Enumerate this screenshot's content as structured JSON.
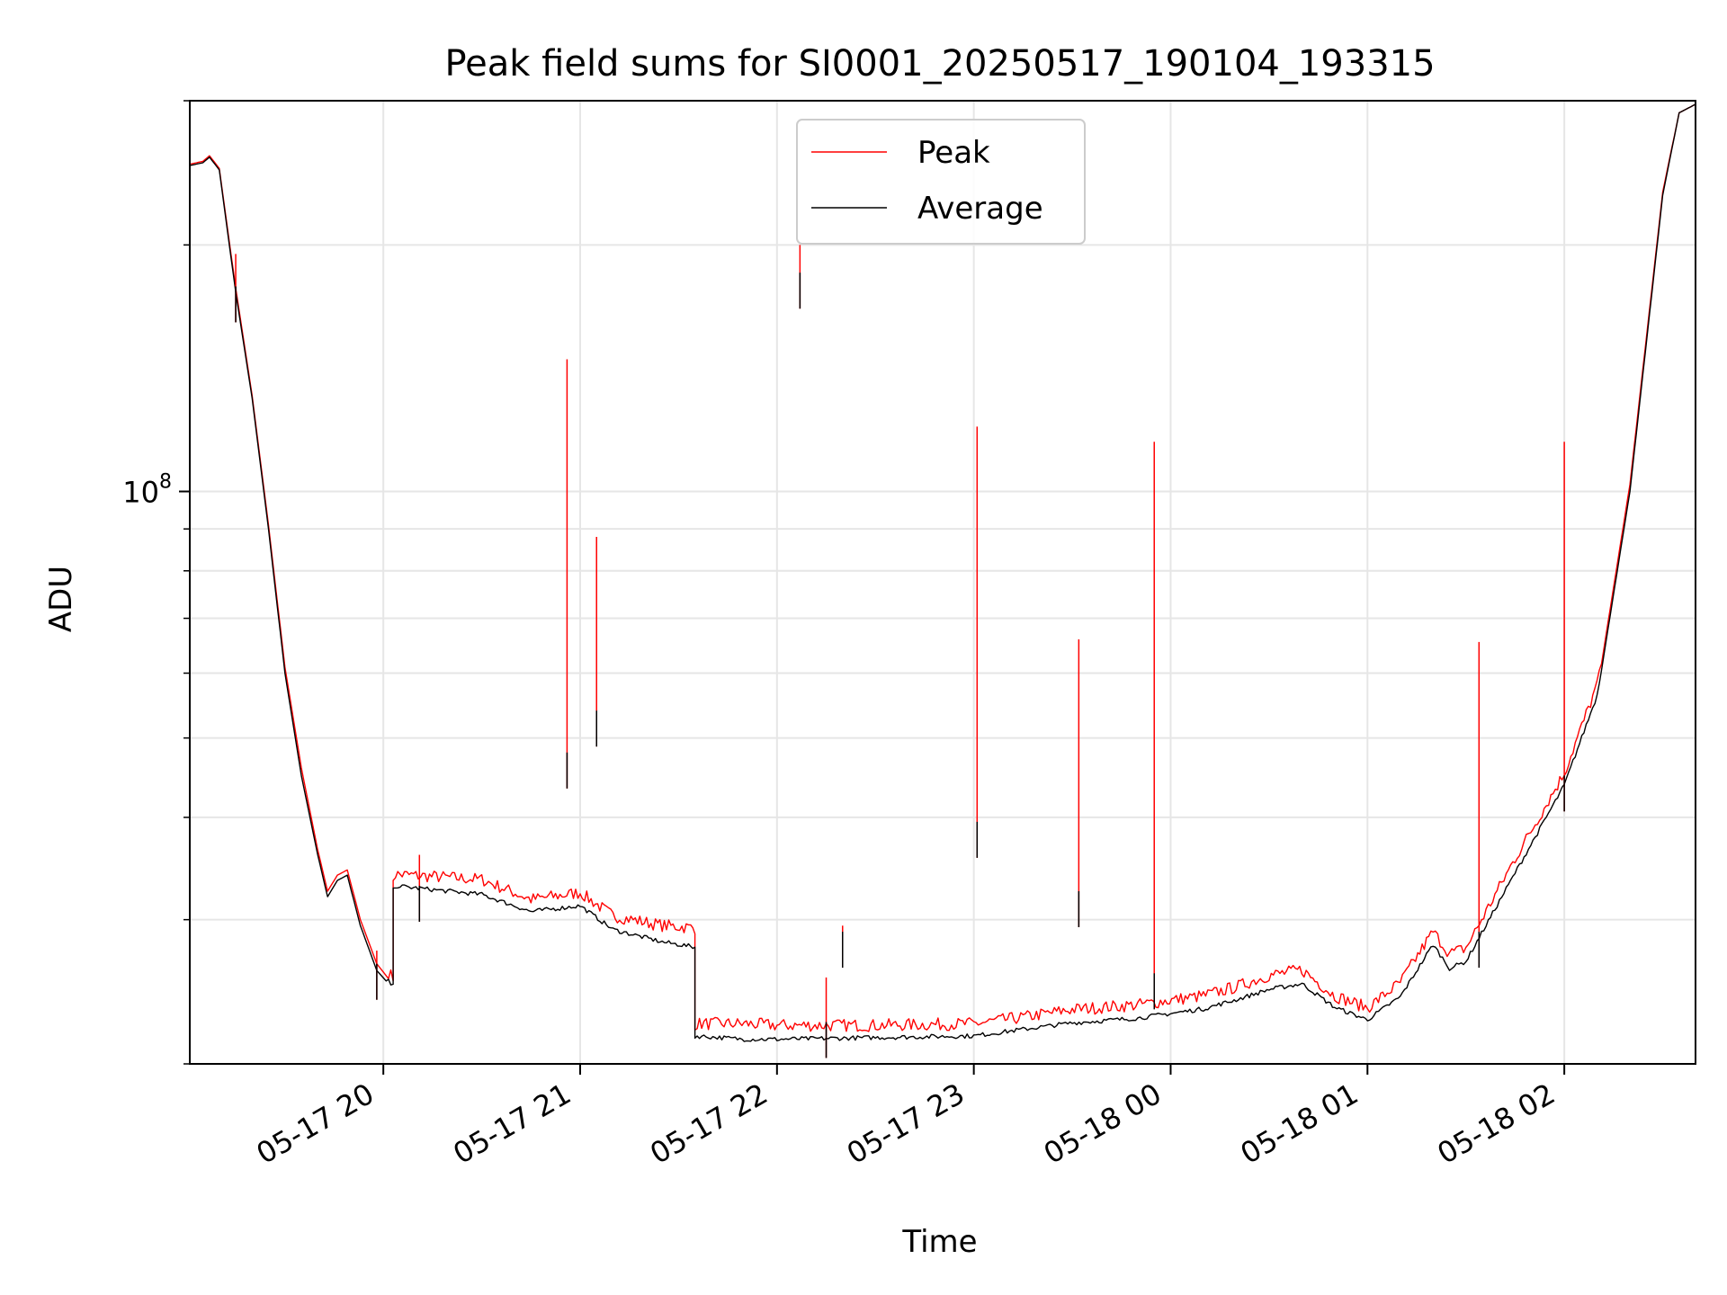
{
  "chart_data": {
    "type": "line",
    "title": "Peak field sums for SI0001_20250517_190104_193315",
    "xlabel": "Time",
    "ylabel": "ADU",
    "y_scale": "log",
    "ylim": [
      20000000,
      300000000
    ],
    "xlim": [
      "2025-05-17 19:01",
      "2025-05-18 02:40"
    ],
    "grid": true,
    "legend_position": "upper center",
    "x_tick_labels": [
      "05-17 20",
      "05-17 21",
      "05-17 22",
      "05-17 23",
      "05-18 00",
      "05-18 01",
      "05-18 02"
    ],
    "x_ticks": [
      "2025-05-17 20:00",
      "2025-05-17 21:00",
      "2025-05-17 22:00",
      "2025-05-17 23:00",
      "2025-05-18 00:00",
      "2025-05-18 01:00",
      "2025-05-18 02:00"
    ],
    "y_tick_labels": [
      {
        "mantissa": "10",
        "exponent": "8",
        "value": 100000000
      }
    ],
    "series": [
      {
        "name": "Average",
        "color": "#000000",
        "points": [
          [
            "2025-05-17 19:01",
            250000000.0
          ],
          [
            "2025-05-17 19:05",
            252000000.0
          ],
          [
            "2025-05-17 19:07",
            256000000.0
          ],
          [
            "2025-05-17 19:10",
            247000000.0
          ],
          [
            "2025-05-17 19:15",
            175000000.0
          ],
          [
            "2025-05-17 19:20",
            130000000.0
          ],
          [
            "2025-05-17 19:25",
            90000000.0
          ],
          [
            "2025-05-17 19:30",
            60000000.0
          ],
          [
            "2025-05-17 19:35",
            45000000.0
          ],
          [
            "2025-05-17 19:40",
            36000000.0
          ],
          [
            "2025-05-17 19:43",
            32000000.0
          ],
          [
            "2025-05-17 19:46",
            33500000.0
          ],
          [
            "2025-05-17 19:49",
            34000000.0
          ],
          [
            "2025-05-17 19:53",
            29500000.0
          ],
          [
            "2025-05-17 19:58",
            26000000.0
          ],
          [
            "2025-05-17 20:03",
            24700000.0
          ],
          [
            "2025-05-17 20:03",
            32800000.0
          ],
          [
            "2025-05-17 20:30",
            32000000.0
          ],
          [
            "2025-05-17 20:45",
            30500000.0
          ],
          [
            "2025-05-17 21:00",
            31000000.0
          ],
          [
            "2025-05-17 21:10",
            29000000.0
          ],
          [
            "2025-05-17 21:25",
            28000000.0
          ],
          [
            "2025-05-17 21:35",
            27600000.0
          ],
          [
            "2025-05-17 21:35",
            21500000.0
          ],
          [
            "2025-05-17 21:50",
            21300000.0
          ],
          [
            "2025-05-17 22:00",
            21300000.0
          ],
          [
            "2025-05-17 22:30",
            21400000.0
          ],
          [
            "2025-05-17 23:00",
            21500000.0
          ],
          [
            "2025-05-17 23:15",
            21900000.0
          ],
          [
            "2025-05-17 23:30",
            22300000.0
          ],
          [
            "2025-05-17 23:50",
            22600000.0
          ],
          [
            "2025-05-18 00:10",
            23200000.0
          ],
          [
            "2025-05-18 00:20",
            23800000.0
          ],
          [
            "2025-05-18 00:30",
            24500000.0
          ],
          [
            "2025-05-18 00:40",
            24900000.0
          ],
          [
            "2025-05-18 00:50",
            23300000.0
          ],
          [
            "2025-05-18 01:00",
            22500000.0
          ],
          [
            "2025-05-18 01:10",
            24000000.0
          ],
          [
            "2025-05-18 01:20",
            27800000.0
          ],
          [
            "2025-05-18 01:25",
            26000000.0
          ],
          [
            "2025-05-18 01:30",
            26500000.0
          ],
          [
            "2025-05-18 01:45",
            34000000.0
          ],
          [
            "2025-05-18 02:00",
            43500000.0
          ],
          [
            "2025-05-18 02:10",
            56000000.0
          ],
          [
            "2025-05-18 02:20",
            100000000.0
          ],
          [
            "2025-05-18 02:30",
            230000000.0
          ],
          [
            "2025-05-18 02:35",
            290000000.0
          ],
          [
            "2025-05-18 02:40",
            297000000.0
          ]
        ]
      },
      {
        "name": "Peak",
        "color": "#ff0000",
        "points": [
          [
            "2025-05-17 19:01",
            251000000.0
          ],
          [
            "2025-05-17 19:05",
            253000000.0
          ],
          [
            "2025-05-17 19:07",
            257000000.0
          ],
          [
            "2025-05-17 19:10",
            248000000.0
          ],
          [
            "2025-05-17 19:15",
            177000000.0
          ],
          [
            "2025-05-17 19:20",
            131000000.0
          ],
          [
            "2025-05-17 19:25",
            91000000.0
          ],
          [
            "2025-05-17 19:30",
            61000000.0
          ],
          [
            "2025-05-17 19:35",
            46000000.0
          ],
          [
            "2025-05-17 19:40",
            36500000.0
          ],
          [
            "2025-05-17 19:43",
            32500000.0
          ],
          [
            "2025-05-17 19:46",
            34000000.0
          ],
          [
            "2025-05-17 19:49",
            34500000.0
          ],
          [
            "2025-05-17 19:53",
            30000000.0
          ],
          [
            "2025-05-17 19:58",
            26500000.0
          ],
          [
            "2025-05-17 20:03",
            25000000.0
          ],
          [
            "2025-05-17 20:03",
            33500000.0
          ],
          [
            "2025-05-17 20:30",
            33000000.0
          ],
          [
            "2025-05-17 20:45",
            31200000.0
          ],
          [
            "2025-05-17 21:00",
            31800000.0
          ],
          [
            "2025-05-17 21:10",
            29800000.0
          ],
          [
            "2025-05-17 21:25",
            29000000.0
          ],
          [
            "2025-05-17 21:35",
            28800000.0
          ],
          [
            "2025-05-17 21:35",
            22000000.0
          ],
          [
            "2025-05-17 21:50",
            22000000.0
          ],
          [
            "2025-05-17 22:00",
            21900000.0
          ],
          [
            "2025-05-17 22:30",
            21900000.0
          ],
          [
            "2025-05-17 23:00",
            22000000.0
          ],
          [
            "2025-05-17 23:15",
            22400000.0
          ],
          [
            "2025-05-17 23:30",
            22900000.0
          ],
          [
            "2025-05-17 23:50",
            23200000.0
          ],
          [
            "2025-05-18 00:10",
            23800000.0
          ],
          [
            "2025-05-18 00:20",
            24400000.0
          ],
          [
            "2025-05-18 00:30",
            25200000.0
          ],
          [
            "2025-05-18 00:40",
            25600000.0
          ],
          [
            "2025-05-18 00:50",
            23800000.0
          ],
          [
            "2025-05-18 01:00",
            23000000.0
          ],
          [
            "2025-05-18 01:10",
            24700000.0
          ],
          [
            "2025-05-18 01:20",
            28500000.0
          ],
          [
            "2025-05-18 01:25",
            26800000.0
          ],
          [
            "2025-05-18 01:30",
            27200000.0
          ],
          [
            "2025-05-18 01:45",
            35000000.0
          ],
          [
            "2025-05-18 02:00",
            44500000.0
          ],
          [
            "2025-05-18 02:10",
            57000000.0
          ],
          [
            "2025-05-18 02:20",
            102000000.0
          ],
          [
            "2025-05-18 02:30",
            232000000.0
          ],
          [
            "2025-05-18 02:35",
            290000000.0
          ],
          [
            "2025-05-18 02:40",
            297000000.0
          ]
        ]
      }
    ],
    "spikes": [
      {
        "time": "2025-05-17 19:15",
        "peak": 195000000.0,
        "average": 178000000.0
      },
      {
        "time": "2025-05-17 19:58",
        "peak": 27500000.0,
        "average": 26500000.0
      },
      {
        "time": "2025-05-17 20:11",
        "peak": 36000000.0,
        "average": 33000000.0
      },
      {
        "time": "2025-05-17 20:56",
        "peak": 145000000.0,
        "average": 48000000.0
      },
      {
        "time": "2025-05-17 21:05",
        "peak": 88000000.0,
        "average": 54000000.0
      },
      {
        "time": "2025-05-17 22:07",
        "peak": 200000000.0,
        "average": 185000000.0
      },
      {
        "time": "2025-05-17 22:15",
        "peak": 25500000.0,
        "average": 22500000.0
      },
      {
        "time": "2025-05-17 22:20",
        "peak": 29500000.0,
        "average": 29000000.0
      },
      {
        "time": "2025-05-17 23:01",
        "peak": 120000000.0,
        "average": 39500000.0
      },
      {
        "time": "2025-05-17 23:32",
        "peak": 66000000.0,
        "average": 32500000.0
      },
      {
        "time": "2025-05-17 23:55",
        "peak": 115000000.0,
        "average": 25800000.0
      },
      {
        "time": "2025-05-18 01:34",
        "peak": 65500000.0,
        "average": 29000000.0
      },
      {
        "time": "2025-05-18 02:00",
        "peak": 115000000.0,
        "average": 45000000.0
      }
    ]
  }
}
